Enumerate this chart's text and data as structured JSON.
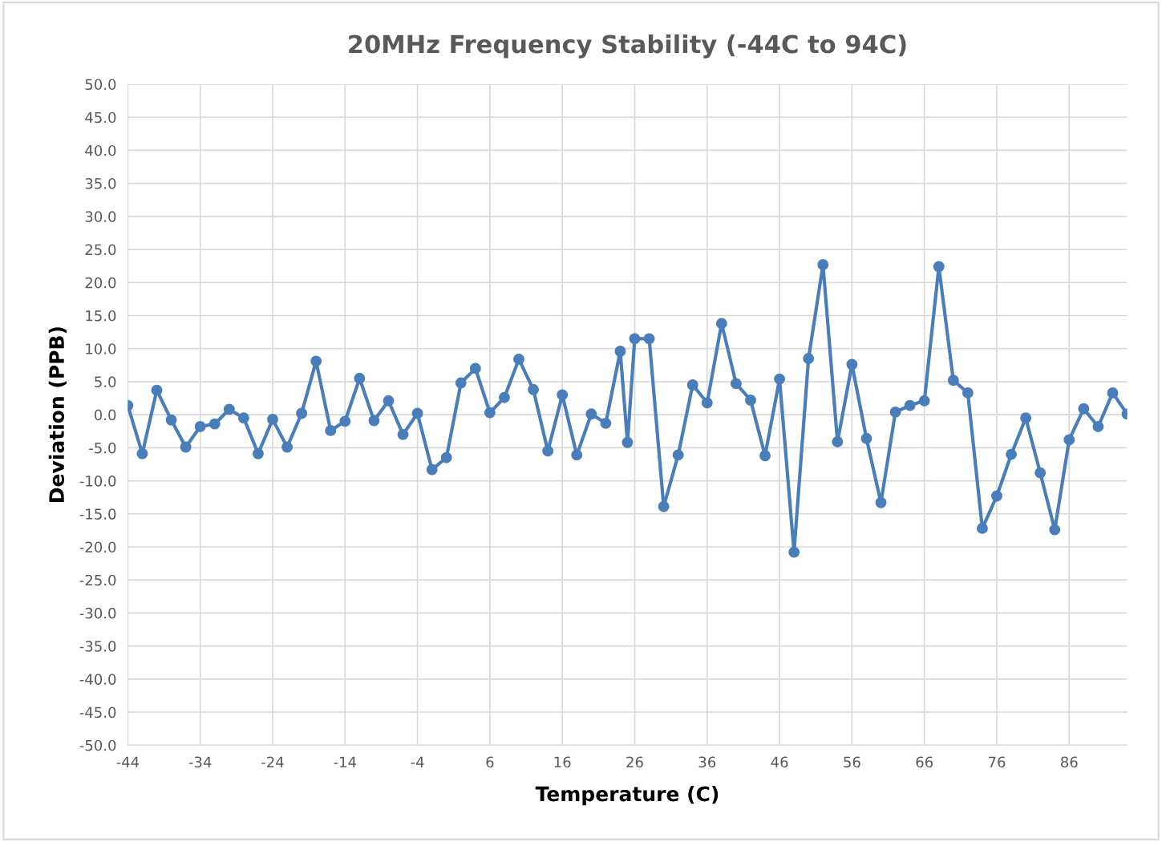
{
  "chart_data": {
    "type": "line",
    "title": "20MHz Frequency Stability (-44C to 94C)",
    "xlabel": "Temperature (C)",
    "ylabel": "Deviation (PPB)",
    "series": [
      {
        "color": "#4a7ebb",
        "marker": "circle",
        "line_style": "solid",
        "x": [
          -44,
          -42,
          -40,
          -38,
          -36,
          -34,
          -32,
          -30,
          -28,
          -26,
          -24,
          -22,
          -20,
          -18,
          -16,
          -14,
          -12,
          -10,
          -8,
          -6,
          -4,
          -2,
          0,
          2,
          4,
          6,
          8,
          10,
          12,
          14,
          16,
          18,
          20,
          22,
          24,
          25,
          26,
          28,
          30,
          32,
          34,
          36,
          38,
          40,
          42,
          44,
          46,
          48,
          50,
          52,
          54,
          56,
          58,
          60,
          62,
          64,
          66,
          68,
          70,
          72,
          74,
          76,
          78,
          80,
          82,
          84,
          86,
          88,
          90,
          92,
          94
        ],
        "values": [
          1.4,
          -5.9,
          3.7,
          -0.8,
          -4.9,
          -1.8,
          -1.4,
          0.8,
          -0.5,
          -5.9,
          -0.7,
          -4.9,
          0.2,
          8.1,
          -2.4,
          -1.0,
          5.5,
          -0.9,
          2.1,
          -3.0,
          0.2,
          -8.3,
          -6.5,
          4.8,
          7.0,
          0.3,
          2.6,
          8.4,
          3.8,
          -5.5,
          3.0,
          -6.1,
          0.1,
          -1.3,
          9.6,
          -4.2,
          11.5,
          11.5,
          -13.9,
          -6.1,
          4.5,
          1.8,
          13.8,
          4.7,
          2.2,
          -6.2,
          5.4,
          -20.8,
          8.5,
          22.7,
          -4.1,
          7.6,
          -3.6,
          -13.3,
          0.4,
          1.4,
          2.1,
          22.4,
          5.2,
          3.3,
          -17.2,
          -12.3,
          -6.0,
          -0.5,
          -8.8,
          -17.4,
          -3.8,
          0.9,
          -1.8,
          3.3,
          0.1
        ]
      }
    ],
    "xlim": [
      -44,
      94
    ],
    "xticks": [
      -44,
      -34,
      -24,
      -14,
      -4,
      6,
      16,
      26,
      36,
      46,
      56,
      66,
      76,
      86
    ],
    "ylim": [
      -50,
      50
    ],
    "yticks": [
      {
        "value": 50,
        "label": "50.0"
      },
      {
        "value": 45,
        "label": "45.0"
      },
      {
        "value": 40,
        "label": "40.0"
      },
      {
        "value": 35,
        "label": "35.0"
      },
      {
        "value": 30,
        "label": "30.0"
      },
      {
        "value": 25,
        "label": "25.0"
      },
      {
        "value": 20,
        "label": "20.0"
      },
      {
        "value": 15,
        "label": "15.0"
      },
      {
        "value": 10,
        "label": "10.0"
      },
      {
        "value": 5,
        "label": "5.0"
      },
      {
        "value": 0,
        "label": "0.0"
      },
      {
        "value": -5,
        "label": "-5.0"
      },
      {
        "value": -10,
        "label": "-10.0"
      },
      {
        "value": -15,
        "label": "-15.0"
      },
      {
        "value": -20,
        "label": "-20.0"
      },
      {
        "value": -25,
        "label": "-25.0"
      },
      {
        "value": -30,
        "label": "-30.0"
      },
      {
        "value": -35,
        "label": "-35.0"
      },
      {
        "value": -40,
        "label": "-40.0"
      },
      {
        "value": -45,
        "label": "-45.0"
      },
      {
        "value": -50,
        "label": "-50.0"
      }
    ],
    "grid": true,
    "legend": false
  }
}
